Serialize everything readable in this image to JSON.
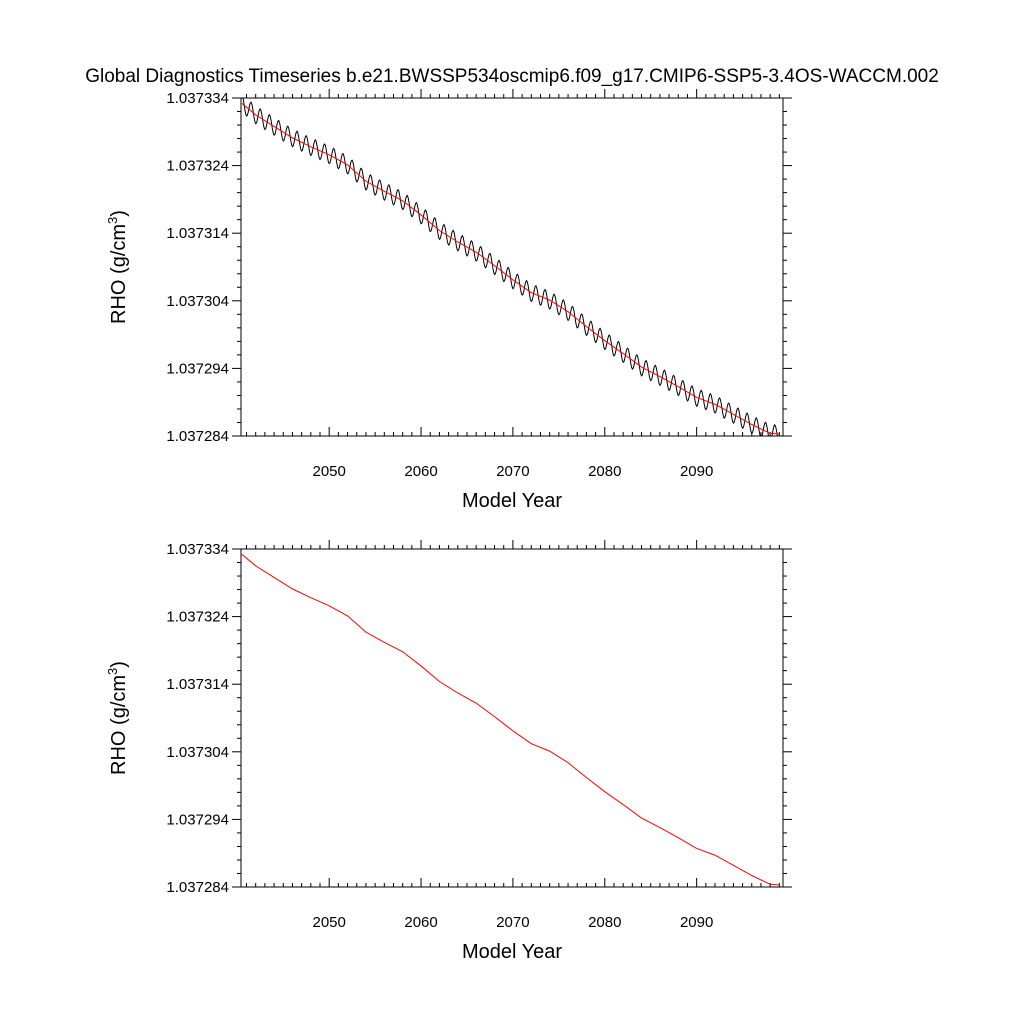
{
  "title": "Global Diagnostics Timeseries b.e21.BWSSP534oscmip6.f09_g17.CMIP6-SSP5-3.4OS-WACCM.002",
  "colors": {
    "raw": "#000000",
    "smooth": "#ff0000",
    "axis": "#000000",
    "background": "#ffffff"
  },
  "chart_data": [
    {
      "type": "line",
      "title": "",
      "xlabel": "Model Year",
      "ylabel": "RHO (g/cm",
      "ylabel_sup": "3",
      "ylabel_close": ")",
      "xlim": [
        2040.4,
        2099.4
      ],
      "ylim": [
        1.037284,
        1.037334
      ],
      "xticks": [
        2050,
        2060,
        2070,
        2080,
        2090
      ],
      "yticks": [
        "1.037284",
        "1.037294",
        "1.037304",
        "1.037314",
        "1.037324",
        "1.037334"
      ],
      "grid": false,
      "series": [
        {
          "role": "monthly",
          "color": "#000000",
          "seasonal_amplitude": 1.3e-06,
          "x": [
            2040.5,
            2042,
            2044,
            2046,
            2048,
            2050,
            2052,
            2054,
            2056,
            2058,
            2060,
            2062,
            2064,
            2066,
            2068,
            2070,
            2072,
            2074,
            2076,
            2078,
            2080,
            2082,
            2084,
            2086,
            2088,
            2090,
            2092,
            2094,
            2096,
            2098,
            2099
          ],
          "y": [
            1.0373332,
            1.0373315,
            1.0373298,
            1.0373281,
            1.0373268,
            1.0373256,
            1.0373241,
            1.0373217,
            1.0373202,
            1.0373188,
            1.0373167,
            1.0373144,
            1.0373127,
            1.0373112,
            1.0373092,
            1.0373071,
            1.0373052,
            1.0373041,
            1.0373024,
            1.0373002,
            1.0372981,
            1.0372962,
            1.0372942,
            1.0372928,
            1.0372913,
            1.0372897,
            1.0372887,
            1.0372872,
            1.0372857,
            1.0372844,
            1.0372843
          ]
        },
        {
          "role": "annual-mean",
          "color": "#ff0000",
          "x": [
            2040.5,
            2042,
            2044,
            2046,
            2048,
            2050,
            2052,
            2054,
            2056,
            2058,
            2060,
            2062,
            2064,
            2066,
            2068,
            2070,
            2072,
            2074,
            2076,
            2078,
            2080,
            2082,
            2084,
            2086,
            2088,
            2090,
            2092,
            2094,
            2096,
            2098,
            2099
          ],
          "y": [
            1.0373332,
            1.0373315,
            1.0373298,
            1.0373281,
            1.0373268,
            1.0373256,
            1.0373241,
            1.0373217,
            1.0373202,
            1.0373188,
            1.0373167,
            1.0373144,
            1.0373127,
            1.0373112,
            1.0373092,
            1.0373071,
            1.0373052,
            1.0373041,
            1.0373024,
            1.0373002,
            1.0372981,
            1.0372962,
            1.0372942,
            1.0372928,
            1.0372913,
            1.0372897,
            1.0372887,
            1.0372872,
            1.0372857,
            1.0372844,
            1.0372843
          ]
        }
      ]
    },
    {
      "type": "line",
      "title": "",
      "xlabel": "Model Year",
      "ylabel": "RHO (g/cm",
      "ylabel_sup": "3",
      "ylabel_close": ")",
      "xlim": [
        2040.4,
        2099.4
      ],
      "ylim": [
        1.037284,
        1.037334
      ],
      "xticks": [
        2050,
        2060,
        2070,
        2080,
        2090
      ],
      "yticks": [
        "1.037284",
        "1.037294",
        "1.037304",
        "1.037314",
        "1.037324",
        "1.037334"
      ],
      "grid": false,
      "series": [
        {
          "role": "annual-mean",
          "color": "#ff0000",
          "x": [
            2040.5,
            2042,
            2044,
            2046,
            2048,
            2050,
            2052,
            2054,
            2056,
            2058,
            2060,
            2062,
            2064,
            2066,
            2068,
            2070,
            2072,
            2074,
            2076,
            2078,
            2080,
            2082,
            2084,
            2086,
            2088,
            2090,
            2092,
            2094,
            2096,
            2098,
            2099
          ],
          "y": [
            1.0373332,
            1.0373315,
            1.0373298,
            1.0373281,
            1.0373268,
            1.0373256,
            1.0373241,
            1.0373217,
            1.0373202,
            1.0373188,
            1.0373167,
            1.0373144,
            1.0373127,
            1.0373112,
            1.0373092,
            1.0373071,
            1.0373052,
            1.0373041,
            1.0373024,
            1.0373002,
            1.0372981,
            1.0372962,
            1.0372942,
            1.0372928,
            1.0372913,
            1.0372897,
            1.0372887,
            1.0372872,
            1.0372857,
            1.0372844,
            1.0372843
          ]
        }
      ]
    }
  ]
}
